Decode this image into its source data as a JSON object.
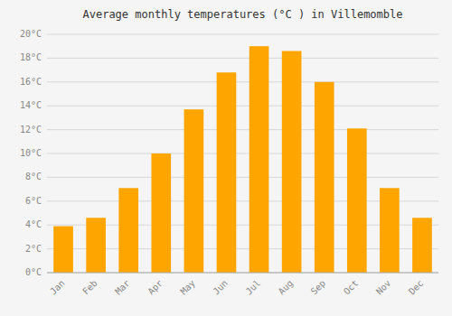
{
  "chart_data": {
    "type": "bar",
    "title": "Average monthly temperatures (°C ) in Villemomble",
    "categories": [
      "Jan",
      "Feb",
      "Mar",
      "Apr",
      "May",
      "Jun",
      "Jul",
      "Aug",
      "Sep",
      "Oct",
      "Nov",
      "Dec"
    ],
    "values": [
      3.9,
      4.6,
      7.1,
      10.0,
      13.7,
      16.8,
      19.0,
      18.6,
      16.0,
      12.1,
      7.1,
      4.6
    ],
    "color": "#FFA500",
    "ylim": [
      0,
      20
    ],
    "yticks": [
      {
        "value": 0,
        "label": "0°C"
      },
      {
        "value": 2,
        "label": "2°C"
      },
      {
        "value": 4,
        "label": "4°C"
      },
      {
        "value": 6,
        "label": "6°C"
      },
      {
        "value": 8,
        "label": "8°C"
      },
      {
        "value": 10,
        "label": "10°C"
      },
      {
        "value": 12,
        "label": "12°C"
      },
      {
        "value": 14,
        "label": "14°C"
      },
      {
        "value": 16,
        "label": "16°C"
      },
      {
        "value": 18,
        "label": "18°C"
      },
      {
        "value": 20,
        "label": "20°C"
      }
    ],
    "grid": true
  }
}
